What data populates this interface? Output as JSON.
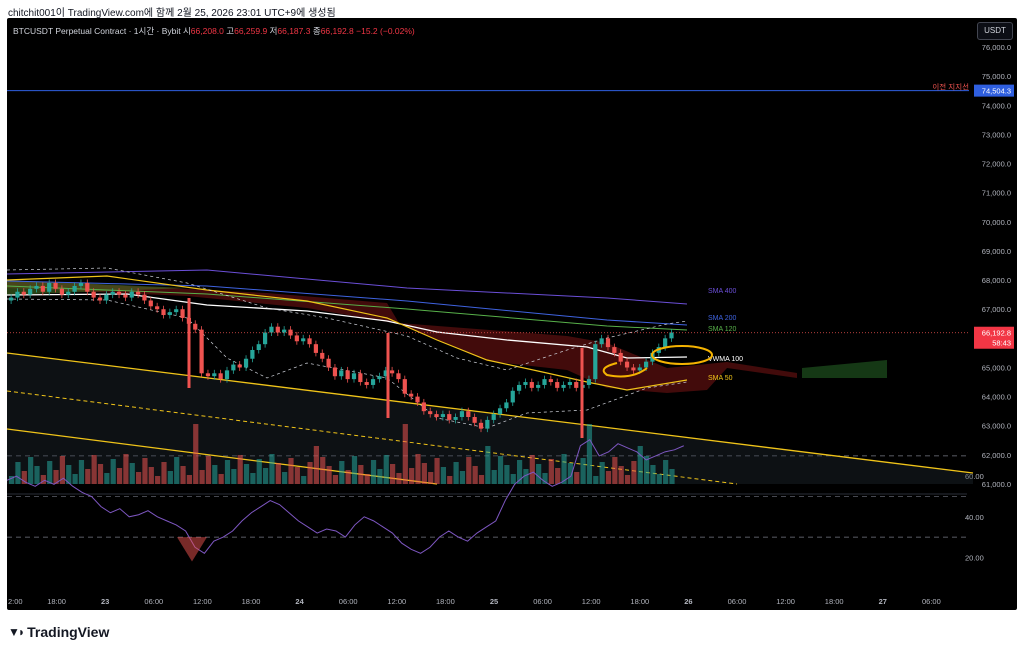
{
  "caption": "chitchit001이 TradingView.com에 함께 2월 25, 2026 23:01 UTC+9에 생성됨",
  "legend": {
    "symbol": "BTCUSDT Perpetual Contract · 1시간 · Bybit",
    "open_label": "시",
    "open": "66,208.0",
    "high_label": "고",
    "high": "66,259.9",
    "low_label": "저",
    "low": "66,187.3",
    "close_label": "종",
    "close": "66,192.8",
    "change": "−15.2 (−0.02%)"
  },
  "currency_button": "USDT",
  "price_axis": [
    "76,000.0",
    "75,000.0",
    "74,000.0",
    "73,000.0",
    "72,000.0",
    "71,000.0",
    "70,000.0",
    "69,000.0",
    "68,000.0",
    "67,000.0",
    "66,000.0",
    "65,000.0",
    "64,000.0",
    "63,000.0",
    "62,000.0",
    "61,000.0"
  ],
  "rsi_axis": [
    "60.00",
    "40.00",
    "20.00"
  ],
  "time_axis": [
    "2:00",
    "18:00",
    "23",
    "06:00",
    "12:00",
    "18:00",
    "24",
    "06:00",
    "12:00",
    "18:00",
    "25",
    "06:00",
    "12:00",
    "18:00",
    "26",
    "06:00",
    "12:00",
    "18:00",
    "27",
    "06:00"
  ],
  "support": {
    "label": "이전 지지선",
    "price": "74,504.3"
  },
  "last_price": {
    "price": "66,192.8",
    "countdown": "58:43"
  },
  "indicator_labels": {
    "sma400": "SMA 400",
    "sma200": "SMA 200",
    "sma120": "SMA 120",
    "vwma100": "VWMA 100",
    "sma50": "SMA 50"
  },
  "colors": {
    "background": "#000000",
    "up": "#26a69a",
    "down": "#ef5350",
    "sma400": "#6b4fd8",
    "sma200": "#3f63e0",
    "sma120": "#58b14a",
    "vwma100": "#ffffff",
    "sma50": "#f0c419",
    "support": "#2f5fe0",
    "rsi": "#7e57c2"
  },
  "brand": "TradingView"
}
